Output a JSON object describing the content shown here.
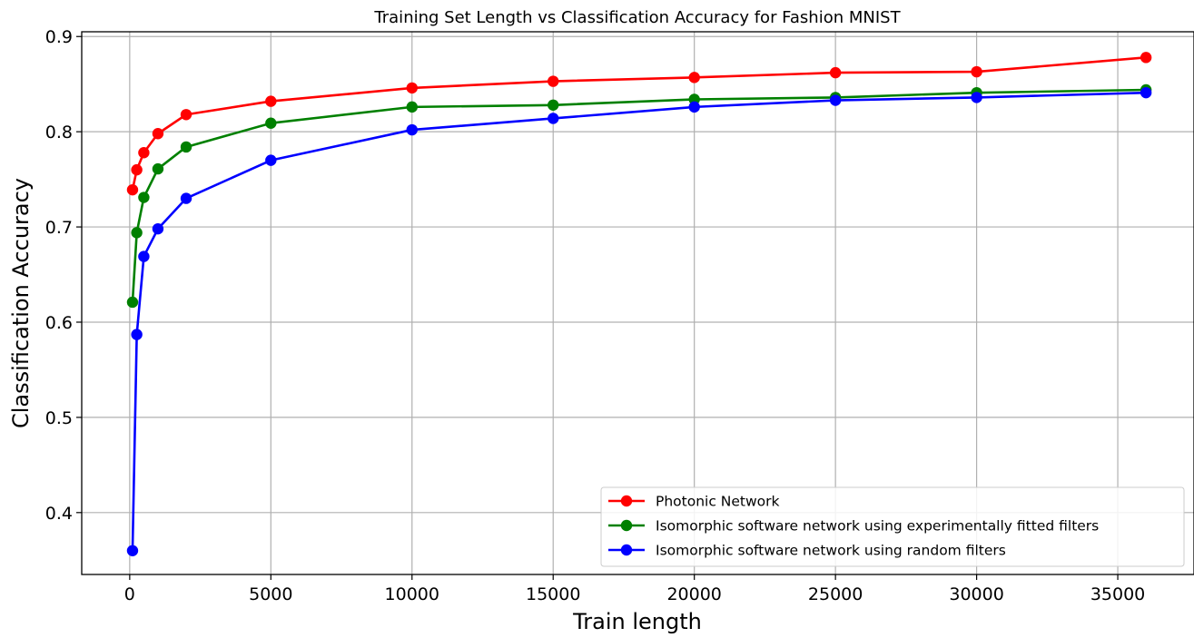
{
  "chart_data": {
    "type": "line",
    "title": "Training Set Length vs Classification Accuracy for Fashion MNIST",
    "xlabel": "Train length",
    "ylabel": "Classification Accuracy",
    "xlim": [
      -1700,
      37700
    ],
    "ylim": [
      0.335,
      0.905
    ],
    "xticks": [
      0,
      5000,
      10000,
      15000,
      20000,
      25000,
      30000,
      35000
    ],
    "xtick_labels": [
      "0",
      "5000",
      "10000",
      "15000",
      "20000",
      "25000",
      "30000",
      "35000"
    ],
    "yticks": [
      0.4,
      0.5,
      0.6,
      0.7,
      0.8,
      0.9
    ],
    "ytick_labels": [
      "0.4",
      "0.5",
      "0.6",
      "0.7",
      "0.8",
      "0.9"
    ],
    "grid": true,
    "legend_position": "bottom-right",
    "x": [
      100,
      250,
      500,
      1000,
      2000,
      5000,
      10000,
      15000,
      20000,
      25000,
      30000,
      36000
    ],
    "series": [
      {
        "name": "Photonic Network",
        "color": "#ff0000",
        "values": [
          0.739,
          0.76,
          0.778,
          0.798,
          0.818,
          0.832,
          0.846,
          0.853,
          0.857,
          0.862,
          0.863,
          0.878
        ]
      },
      {
        "name": "Isomorphic software network using experimentally fitted filters",
        "color": "#008000",
        "values": [
          0.621,
          0.694,
          0.731,
          0.761,
          0.784,
          0.809,
          0.826,
          0.828,
          0.834,
          0.836,
          0.841,
          0.844
        ]
      },
      {
        "name": "Isomorphic software network using random filters",
        "color": "#0000ff",
        "values": [
          0.36,
          0.587,
          0.669,
          0.698,
          0.73,
          0.77,
          0.802,
          0.814,
          0.826,
          0.833,
          0.836,
          0.841
        ]
      }
    ]
  }
}
